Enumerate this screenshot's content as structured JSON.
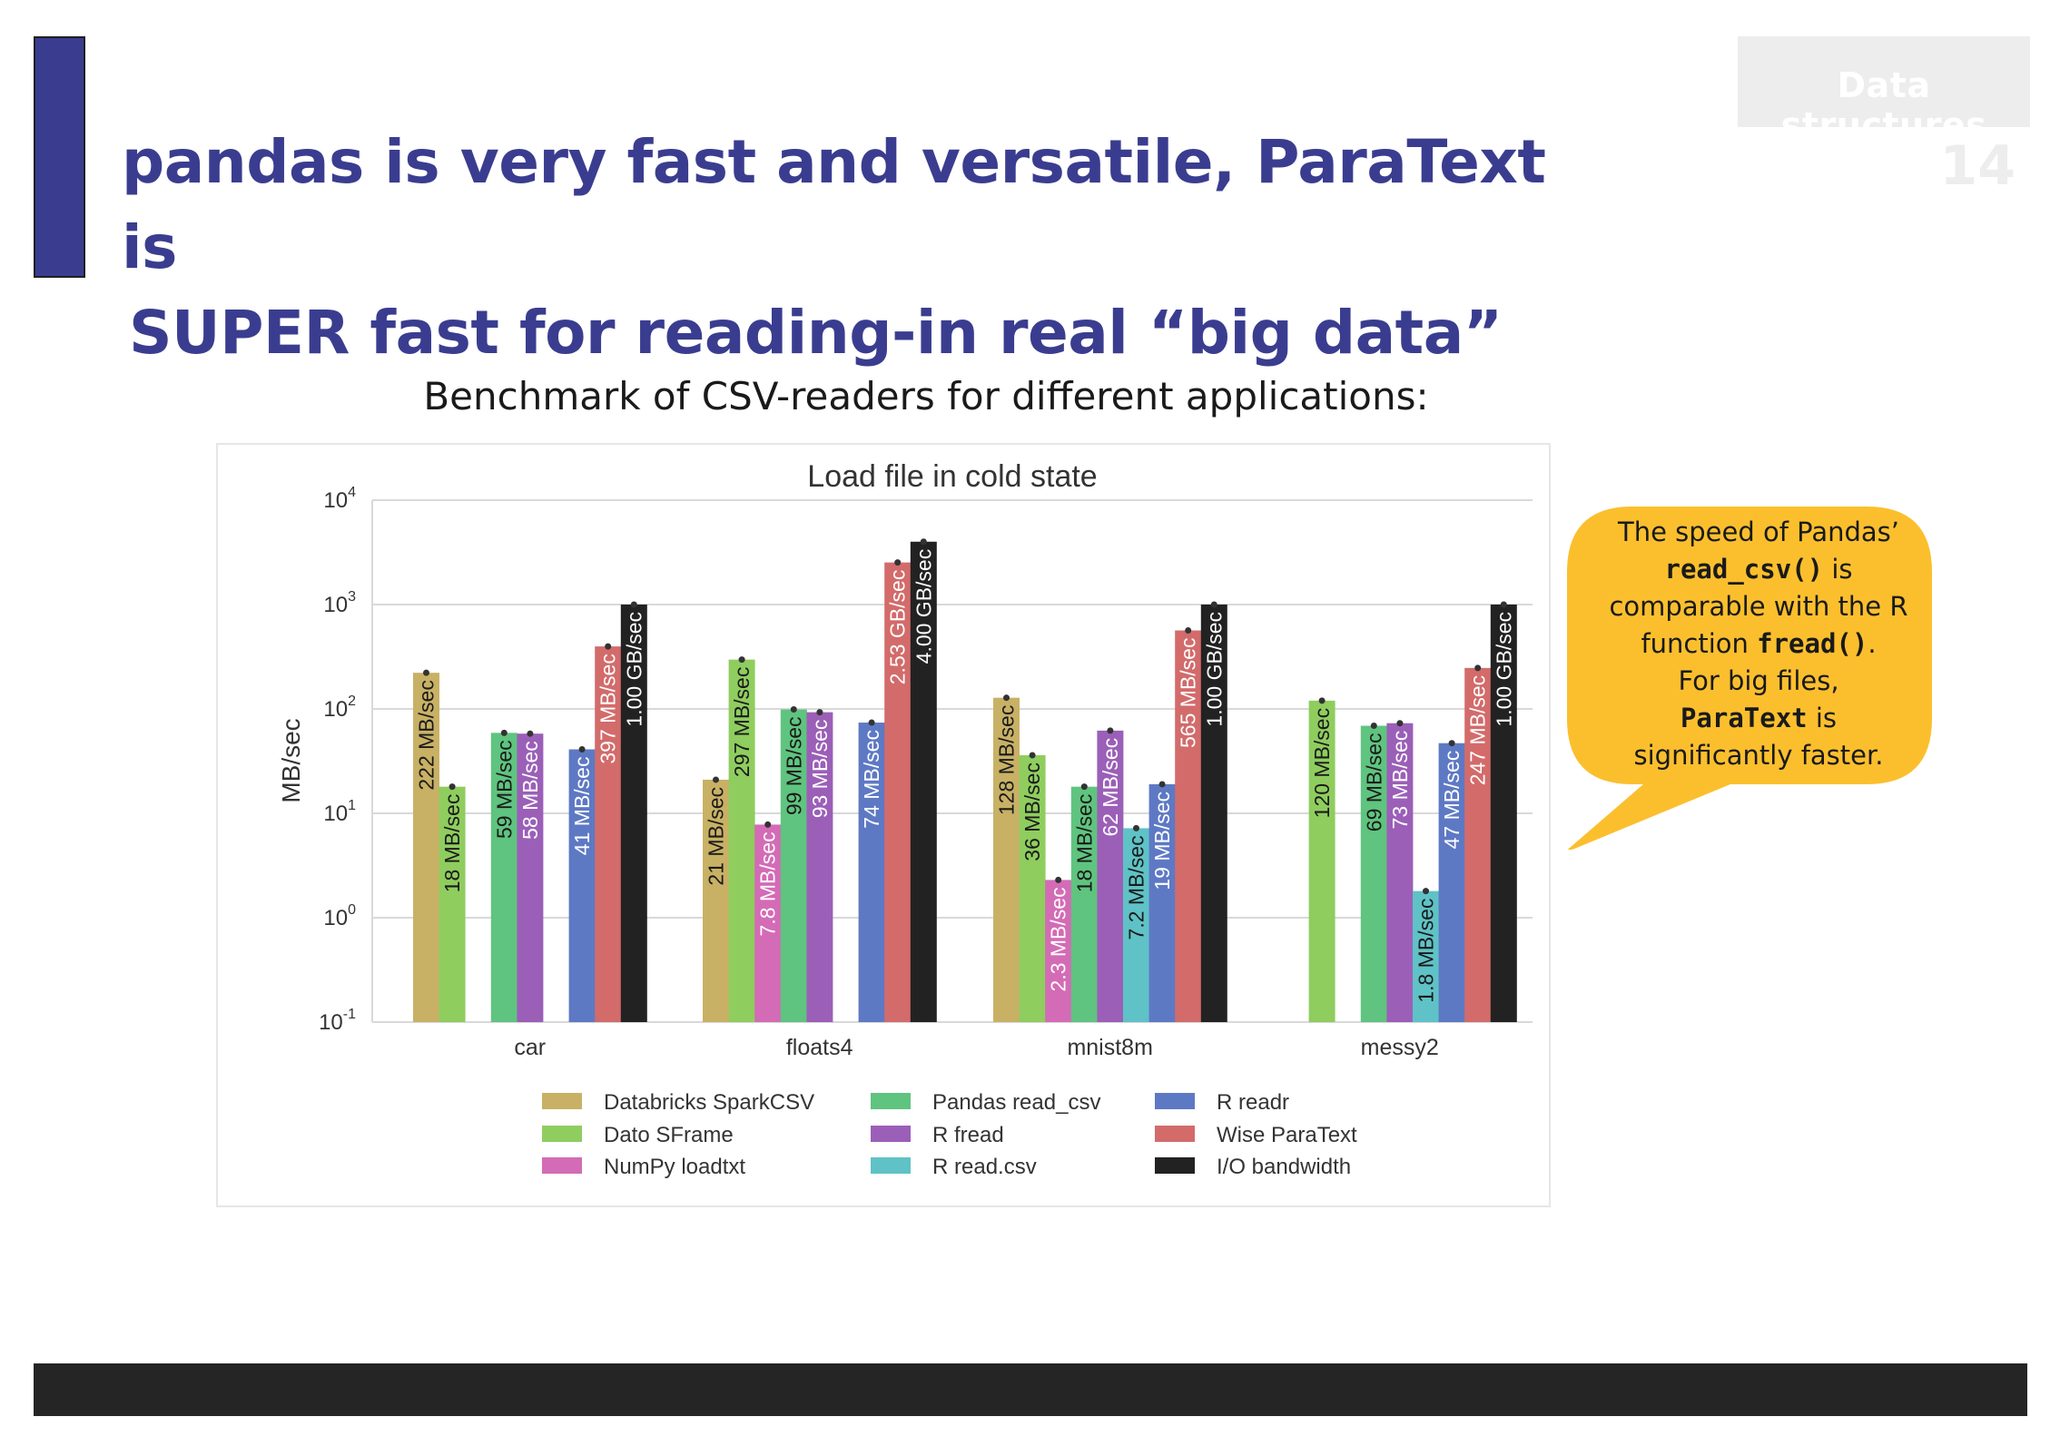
{
  "slide": {
    "title_line1": "pandas is very fast and versatile, ParaText is",
    "title_line2": "SUPER fast for reading-in real “big data”",
    "section_label": "Data structures",
    "page_number": "14",
    "subtitle": "Benchmark of CSV-readers for different applications:",
    "accent_color": "#3a3d8f"
  },
  "callout": {
    "line1": "The speed of Pandas’",
    "code1": "read_csv()",
    "line2_suffix": " is",
    "line3": "comparable with the R",
    "line4_prefix": "function ",
    "code2": "fread()",
    "line4_suffix": ".",
    "line5": "For big files,",
    "code3": "ParaText",
    "line6_suffix": " is",
    "line7": "significantly faster.",
    "color": "#fbbf2e"
  },
  "chart_data": {
    "type": "bar",
    "title": "Load file in cold state",
    "ylabel": "MB/sec",
    "xlabel": "",
    "yscale": "log",
    "ylim_exp": [
      -1,
      4
    ],
    "yticks": [
      {
        "base": "10",
        "exp": "-1"
      },
      {
        "base": "10",
        "exp": "0"
      },
      {
        "base": "10",
        "exp": "1"
      },
      {
        "base": "10",
        "exp": "2"
      },
      {
        "base": "10",
        "exp": "3"
      },
      {
        "base": "10",
        "exp": "4"
      }
    ],
    "grid": true,
    "legend_position": "bottom",
    "categories": [
      "car",
      "floats4",
      "mnist8m",
      "messy2"
    ],
    "series": [
      {
        "name": "Databricks SparkCSV",
        "color": "#c8b165",
        "values": [
          222,
          21,
          128,
          null
        ],
        "labels": [
          "222 MB/sec",
          "21 MB/sec",
          "128 MB/sec",
          ""
        ],
        "label_color": "#1a1a1a"
      },
      {
        "name": "Dato SFrame",
        "color": "#8fcd5f",
        "values": [
          18,
          297,
          36,
          120
        ],
        "labels": [
          "18 MB/sec",
          "297 MB/sec",
          "36 MB/sec",
          "120 MB/sec"
        ],
        "label_color": "#1a1a1a"
      },
      {
        "name": "NumPy loadtxt",
        "color": "#d46bb6",
        "values": [
          null,
          7.8,
          2.3,
          null
        ],
        "labels": [
          "",
          "7.8 MB/sec",
          "2.3 MB/sec",
          ""
        ],
        "label_color": "#ffffff"
      },
      {
        "name": "Pandas read_csv",
        "color": "#5fc47f",
        "values": [
          59,
          99,
          18,
          69
        ],
        "labels": [
          "59 MB/sec",
          "99 MB/sec",
          "18 MB/sec",
          "69 MB/sec"
        ],
        "label_color": "#1a1a1a"
      },
      {
        "name": "R fread",
        "color": "#9b5fb8",
        "values": [
          58,
          93,
          62,
          73
        ],
        "labels": [
          "58 MB/sec",
          "93 MB/sec",
          "62 MB/sec",
          "73 MB/sec"
        ],
        "label_color": "#ffffff"
      },
      {
        "name": "R read.csv",
        "color": "#5fc2c6",
        "values": [
          null,
          null,
          7.2,
          1.8
        ],
        "labels": [
          "",
          "",
          "7.2 MB/sec",
          "1.8 MB/sec"
        ],
        "label_color": "#1a1a1a"
      },
      {
        "name": "R readr",
        "color": "#5e79c4",
        "values": [
          41,
          74,
          19,
          47
        ],
        "labels": [
          "41 MB/sec",
          "74 MB/sec",
          "19 MB/sec",
          "47 MB/sec"
        ],
        "label_color": "#ffffff"
      },
      {
        "name": "Wise ParaText",
        "color": "#d36b6b",
        "values": [
          397,
          2530,
          565,
          247
        ],
        "labels": [
          "397 MB/sec",
          "2.53 GB/sec",
          "565 MB/sec",
          "247 MB/sec"
        ],
        "label_color": "#ffffff"
      },
      {
        "name": "I/O bandwidth",
        "color": "#222222",
        "values": [
          1000,
          4000,
          1000,
          1000
        ],
        "labels": [
          "1.00 GB/sec",
          "4.00 GB/sec",
          "1.00 GB/sec",
          "1.00 GB/sec"
        ],
        "label_color": "#ffffff"
      }
    ]
  }
}
